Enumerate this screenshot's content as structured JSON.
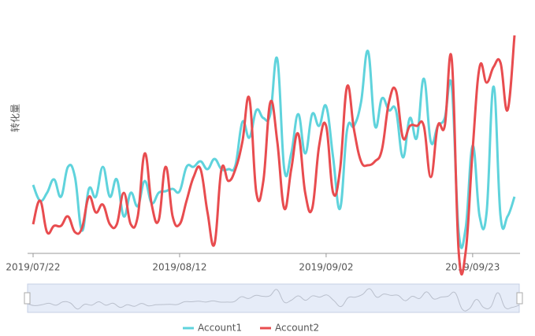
{
  "chart_data": {
    "type": "line",
    "y_label": "转化量",
    "x": [
      "2019/07/22",
      "2019/07/23",
      "2019/07/24",
      "2019/07/25",
      "2019/07/26",
      "2019/07/27",
      "2019/07/28",
      "2019/07/29",
      "2019/07/30",
      "2019/07/31",
      "2019/08/01",
      "2019/08/02",
      "2019/08/03",
      "2019/08/04",
      "2019/08/05",
      "2019/08/06",
      "2019/08/07",
      "2019/08/08",
      "2019/08/09",
      "2019/08/10",
      "2019/08/11",
      "2019/08/12",
      "2019/08/13",
      "2019/08/14",
      "2019/08/15",
      "2019/08/16",
      "2019/08/17",
      "2019/08/18",
      "2019/08/19",
      "2019/08/20",
      "2019/08/21",
      "2019/08/22",
      "2019/08/23",
      "2019/08/24",
      "2019/08/25",
      "2019/08/26",
      "2019/08/27",
      "2019/08/28",
      "2019/08/29",
      "2019/08/30",
      "2019/08/31",
      "2019/09/01",
      "2019/09/02",
      "2019/09/03",
      "2019/09/04",
      "2019/09/05",
      "2019/09/06",
      "2019/09/07",
      "2019/09/08",
      "2019/09/09",
      "2019/09/10",
      "2019/09/11",
      "2019/09/12",
      "2019/09/13",
      "2019/09/14",
      "2019/09/15",
      "2019/09/16",
      "2019/09/17",
      "2019/09/18",
      "2019/09/19",
      "2019/09/20",
      "2019/09/21",
      "2019/09/22",
      "2019/09/23",
      "2019/09/24",
      "2019/09/25",
      "2019/09/26",
      "2019/09/27",
      "2019/09/28",
      "2019/09/29"
    ],
    "xticks": [
      "2019/07/22",
      "2019/08/12",
      "2019/09/02",
      "2019/09/23"
    ],
    "series": [
      {
        "name": "Account1",
        "color": "#5fd3dc",
        "values": [
          87,
          67,
          77,
          94,
          72,
          110,
          97,
          29,
          82,
          72,
          110,
          72,
          94,
          47,
          77,
          60,
          92,
          64,
          77,
          79,
          82,
          79,
          110,
          110,
          117,
          107,
          120,
          107,
          107,
          112,
          167,
          147,
          182,
          172,
          177,
          247,
          107,
          127,
          177,
          127,
          177,
          162,
          187,
          122,
          57,
          157,
          162,
          192,
          257,
          162,
          197,
          182,
          182,
          122,
          172,
          147,
          222,
          142,
          162,
          172,
          212,
          27,
          32,
          137,
          47,
          52,
          212,
          47,
          47,
          72
        ]
      },
      {
        "name": "Account2",
        "color": "#e84c4f",
        "values": [
          37,
          67,
          27,
          35,
          35,
          47,
          27,
          32,
          72,
          52,
          62,
          37,
          37,
          77,
          37,
          47,
          127,
          62,
          42,
          110,
          47,
          37,
          67,
          97,
          107,
          52,
          12,
          107,
          92,
          107,
          142,
          197,
          77,
          92,
          192,
          142,
          57,
          107,
          152,
          77,
          57,
          137,
          162,
          77,
          107,
          212,
          157,
          117,
          112,
          117,
          132,
          192,
          207,
          147,
          162,
          162,
          162,
          97,
          162,
          162,
          247,
          2,
          2,
          132,
          237,
          217,
          237,
          242,
          182,
          277
        ]
      }
    ],
    "ylim": [
      0,
      300
    ]
  }
}
